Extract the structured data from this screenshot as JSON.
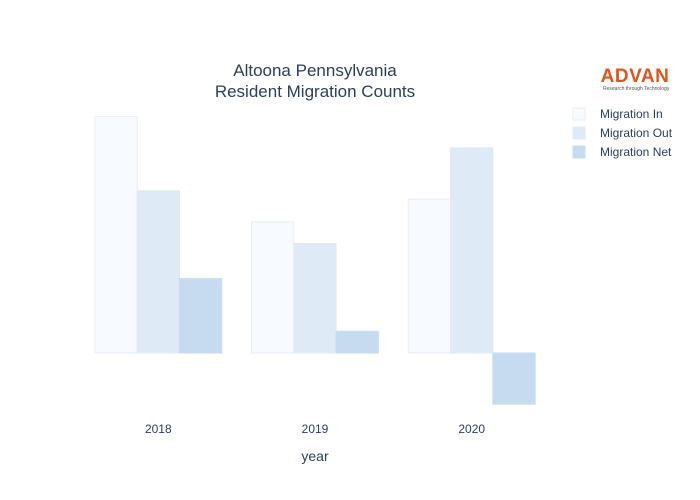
{
  "chart_data": {
    "type": "bar",
    "title": [
      "Altoona Pennsylvania",
      "Resident Migration Counts"
    ],
    "xlabel": "year",
    "ylabel": "",
    "categories": [
      "2018",
      "2019",
      "2020"
    ],
    "series": [
      {
        "name": "Migration In",
        "values": [
          458,
          254,
          298
        ],
        "color": "#f7fbff",
        "stroke": "#e8eef6"
      },
      {
        "name": "Migration Out",
        "values": [
          314,
          212,
          397
        ],
        "color": "#deebf7",
        "stroke": "#deebf7"
      },
      {
        "name": "Migration Net",
        "values": [
          144,
          42,
          -99
        ],
        "color": "#c6dbef",
        "stroke": "#c6dbef"
      }
    ],
    "ylim": [
      -120,
      480
    ],
    "grid": false,
    "y_ticks_shown": false,
    "legend_position": "top-right"
  },
  "logo": {
    "name": "ADVAN",
    "tagline": "Research through Technology"
  }
}
